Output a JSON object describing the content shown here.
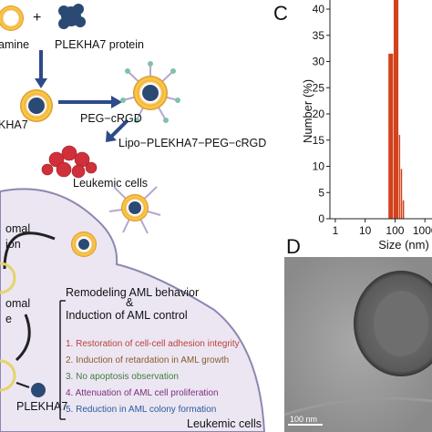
{
  "diagram": {
    "texts": {
      "lipid": "amine",
      "plus": "+",
      "protein": "PLEKHA7 protein",
      "lipo_protein": "KHA7",
      "peg": "PEG−cRGD",
      "nanoparticle": "Lipo−PLEKHA7−PEG−cRGD",
      "cells_top": "Leukemic cells",
      "path1_a": "omal",
      "path1_b": "ion",
      "path2_a": "omal",
      "path2_b": "e",
      "remodel": "Remodeling AML behavior",
      "amp": "&",
      "induction": "Induction of AML control",
      "target": "PLEKHA7",
      "cells_bottom": "Leukemic cells"
    },
    "outcomes": [
      {
        "text": "1. Restoration of cell-cell adhesion integrity",
        "color": "#b8413a"
      },
      {
        "text": "2. Induction of retardation in AML growth",
        "color": "#8a5a2b"
      },
      {
        "text": "3. No apoptosis observation",
        "color": "#3f7f3a"
      },
      {
        "text": "4. Attenuation of AML cell proliferation",
        "color": "#7a2f7a"
      },
      {
        "text": "5. Reduction in AML colony formation",
        "color": "#2c5a9a"
      }
    ]
  },
  "chart_data": {
    "type": "histogram",
    "label": "C",
    "xlabel": "Size (nm)",
    "ylabel": "Number (%)",
    "bins": [
      60,
      90,
      135,
      155,
      180,
      210
    ],
    "values": [
      31.5,
      42,
      16,
      9.5,
      3.5
    ],
    "color": "#d2421c",
    "xscale": "log",
    "xlim": [
      0.66,
      1400
    ],
    "ylim": [
      0,
      42
    ],
    "xticks": [
      1,
      10,
      100,
      1000
    ],
    "yticks": [
      0,
      5,
      10,
      15,
      20,
      25,
      30,
      35,
      40
    ]
  },
  "panel_d": {
    "label": "D",
    "scale_bar": "100 nm"
  }
}
